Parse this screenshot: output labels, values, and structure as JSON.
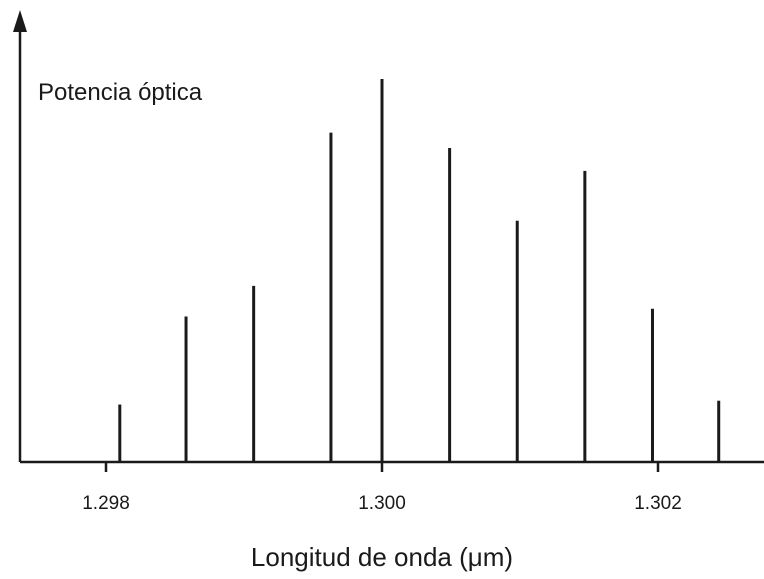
{
  "chart_data": {
    "type": "bar",
    "title": "",
    "ylabel": "Potencia óptica",
    "xlabel": "Longitud de onda (μm)",
    "xlim": [
      1.2975,
      1.3027
    ],
    "ylim": [
      0,
      1
    ],
    "xticks": [
      1.298,
      1.3,
      1.302
    ],
    "xtick_labels": [
      "1.298",
      "1.300",
      "1.302"
    ],
    "grid": false,
    "legend": "none",
    "x": [
      1.2981,
      1.29858,
      1.29907,
      1.29963,
      1.3,
      1.30049,
      1.30098,
      1.30147,
      1.30196,
      1.30244
    ],
    "values": [
      0.15,
      0.38,
      0.46,
      0.86,
      1.0,
      0.82,
      0.63,
      0.76,
      0.4,
      0.16
    ],
    "colors": {
      "stroke": "#1a1a1a"
    }
  }
}
